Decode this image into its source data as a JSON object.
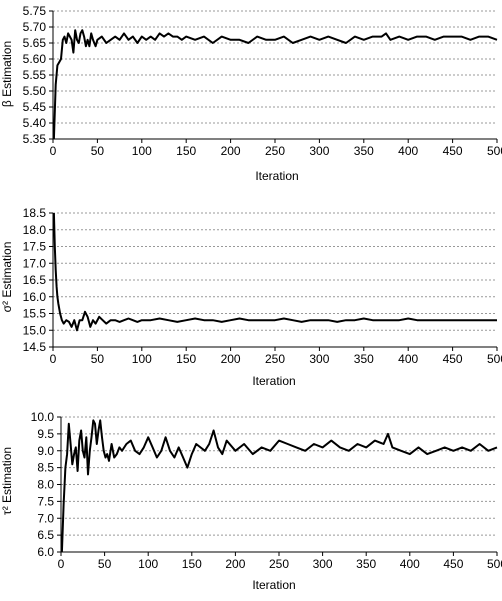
{
  "chart_data": [
    {
      "type": "line",
      "xlabel": "Iteration",
      "ylabel": "β Estimation",
      "xlim": [
        0,
        500
      ],
      "ylim": [
        5.35,
        5.75
      ],
      "xticks": [
        0,
        50,
        100,
        150,
        200,
        250,
        300,
        350,
        400,
        450,
        500
      ],
      "yticks": [
        5.35,
        5.4,
        5.45,
        5.5,
        5.55,
        5.6,
        5.65,
        5.7,
        5.75
      ],
      "ytick_labels": [
        "5.35",
        "5.40",
        "5.45",
        "5.50",
        "5.55",
        "5.60",
        "5.65",
        "5.70",
        "5.75"
      ],
      "grid": "horizontal dashed",
      "series": [
        {
          "x": [
            1,
            3,
            5,
            7,
            9,
            11,
            13,
            15,
            17,
            19,
            21,
            23,
            25,
            27,
            29,
            31,
            33,
            35,
            37,
            39,
            41,
            43,
            45,
            48,
            50,
            55,
            60,
            65,
            70,
            75,
            80,
            85,
            90,
            95,
            100,
            105,
            110,
            115,
            120,
            125,
            130,
            135,
            140,
            145,
            150,
            160,
            170,
            180,
            190,
            200,
            210,
            220,
            230,
            240,
            250,
            260,
            270,
            280,
            290,
            300,
            310,
            320,
            330,
            340,
            350,
            360,
            370,
            375,
            380,
            390,
            400,
            410,
            420,
            430,
            440,
            450,
            460,
            470,
            480,
            490,
            500
          ],
          "y": [
            5.35,
            5.52,
            5.58,
            5.59,
            5.6,
            5.66,
            5.67,
            5.65,
            5.68,
            5.67,
            5.66,
            5.62,
            5.69,
            5.66,
            5.65,
            5.68,
            5.69,
            5.67,
            5.64,
            5.66,
            5.64,
            5.68,
            5.66,
            5.64,
            5.66,
            5.67,
            5.65,
            5.66,
            5.67,
            5.66,
            5.68,
            5.66,
            5.67,
            5.65,
            5.67,
            5.66,
            5.67,
            5.66,
            5.68,
            5.67,
            5.68,
            5.67,
            5.67,
            5.66,
            5.67,
            5.66,
            5.67,
            5.65,
            5.67,
            5.66,
            5.66,
            5.65,
            5.67,
            5.66,
            5.66,
            5.67,
            5.65,
            5.66,
            5.67,
            5.66,
            5.67,
            5.66,
            5.65,
            5.67,
            5.66,
            5.67,
            5.67,
            5.68,
            5.66,
            5.67,
            5.66,
            5.67,
            5.67,
            5.66,
            5.67,
            5.67,
            5.67,
            5.66,
            5.67,
            5.67,
            5.66
          ]
        }
      ]
    },
    {
      "type": "line",
      "xlabel": "Iteration",
      "ylabel": "σ² Estimation",
      "xlim": [
        0,
        500
      ],
      "ylim": [
        14.5,
        18.5
      ],
      "xticks": [
        0,
        50,
        100,
        150,
        200,
        250,
        300,
        350,
        400,
        450,
        500
      ],
      "yticks": [
        14.5,
        15.0,
        15.5,
        16.0,
        16.5,
        17.0,
        17.5,
        18.0,
        18.5
      ],
      "ytick_labels": [
        "14.5",
        "15.0",
        "15.5",
        "16.0",
        "16.5",
        "17.0",
        "17.5",
        "18.0",
        "18.5"
      ],
      "grid": "horizontal dashed",
      "series": [
        {
          "x": [
            1,
            2,
            3,
            4,
            5,
            6,
            8,
            10,
            12,
            15,
            18,
            21,
            24,
            27,
            30,
            33,
            36,
            39,
            42,
            45,
            48,
            52,
            56,
            60,
            65,
            70,
            75,
            80,
            85,
            90,
            95,
            100,
            110,
            120,
            130,
            140,
            150,
            160,
            170,
            180,
            190,
            200,
            210,
            220,
            230,
            240,
            250,
            260,
            270,
            280,
            290,
            300,
            310,
            320,
            330,
            340,
            350,
            360,
            370,
            380,
            390,
            400,
            410,
            420,
            430,
            440,
            450,
            460,
            470,
            480,
            490,
            500
          ],
          "y": [
            18.5,
            17.5,
            16.8,
            16.3,
            16.0,
            15.8,
            15.5,
            15.3,
            15.2,
            15.3,
            15.25,
            15.1,
            15.3,
            15.0,
            15.3,
            15.3,
            15.55,
            15.4,
            15.1,
            15.3,
            15.2,
            15.4,
            15.3,
            15.2,
            15.3,
            15.3,
            15.25,
            15.3,
            15.35,
            15.3,
            15.25,
            15.3,
            15.3,
            15.35,
            15.3,
            15.25,
            15.3,
            15.35,
            15.3,
            15.3,
            15.25,
            15.3,
            15.35,
            15.3,
            15.3,
            15.3,
            15.3,
            15.35,
            15.3,
            15.25,
            15.3,
            15.3,
            15.3,
            15.25,
            15.3,
            15.3,
            15.35,
            15.3,
            15.3,
            15.3,
            15.3,
            15.35,
            15.3,
            15.3,
            15.3,
            15.3,
            15.3,
            15.3,
            15.3,
            15.3,
            15.3,
            15.3
          ]
        }
      ]
    },
    {
      "type": "line",
      "xlabel": "Iteration",
      "ylabel": "τ² Estimation",
      "xlim": [
        0,
        500
      ],
      "ylim": [
        6.0,
        10.0
      ],
      "xticks": [
        0,
        50,
        100,
        150,
        200,
        250,
        300,
        350,
        400,
        450,
        500
      ],
      "yticks": [
        6.0,
        6.5,
        7.0,
        7.5,
        8.0,
        8.5,
        9.0,
        9.5,
        10.0
      ],
      "ytick_labels": [
        "6.0",
        "6.5",
        "7.0",
        "7.5",
        "8.0",
        "8.5",
        "9.0",
        "9.5",
        "10.0"
      ],
      "grid": "horizontal dashed",
      "series": [
        {
          "x": [
            1,
            3,
            5,
            7,
            9,
            11,
            13,
            15,
            17,
            19,
            21,
            23,
            25,
            27,
            29,
            31,
            33,
            35,
            37,
            39,
            41,
            43,
            45,
            47,
            49,
            51,
            53,
            55,
            58,
            61,
            64,
            67,
            70,
            75,
            80,
            85,
            90,
            95,
            100,
            105,
            110,
            115,
            120,
            125,
            130,
            135,
            140,
            145,
            150,
            155,
            160,
            165,
            170,
            175,
            180,
            185,
            190,
            200,
            210,
            220,
            230,
            240,
            250,
            260,
            270,
            280,
            290,
            300,
            310,
            320,
            330,
            340,
            350,
            360,
            370,
            375,
            380,
            390,
            400,
            410,
            420,
            430,
            440,
            450,
            460,
            470,
            480,
            490,
            500
          ],
          "y": [
            6.0,
            7.4,
            8.5,
            8.9,
            9.8,
            9.2,
            8.6,
            8.9,
            9.1,
            8.4,
            9.3,
            9.6,
            9.0,
            8.8,
            9.4,
            8.3,
            9.0,
            9.4,
            9.9,
            9.8,
            9.2,
            9.6,
            9.9,
            9.4,
            9.0,
            8.8,
            8.9,
            8.7,
            9.2,
            8.8,
            8.9,
            9.1,
            9.0,
            9.2,
            9.3,
            9.0,
            8.9,
            9.1,
            9.4,
            9.1,
            8.8,
            9.0,
            9.4,
            9.0,
            8.8,
            9.1,
            8.8,
            8.5,
            8.9,
            9.2,
            9.1,
            9.0,
            9.2,
            9.6,
            9.1,
            8.9,
            9.3,
            9.0,
            9.2,
            8.9,
            9.1,
            9.0,
            9.3,
            9.2,
            9.1,
            9.0,
            9.2,
            9.1,
            9.3,
            9.1,
            9.0,
            9.2,
            9.1,
            9.3,
            9.2,
            9.5,
            9.1,
            9.0,
            8.9,
            9.1,
            8.9,
            9.0,
            9.1,
            9.0,
            9.1,
            9.0,
            9.2,
            9.0,
            9.1
          ]
        }
      ]
    }
  ]
}
